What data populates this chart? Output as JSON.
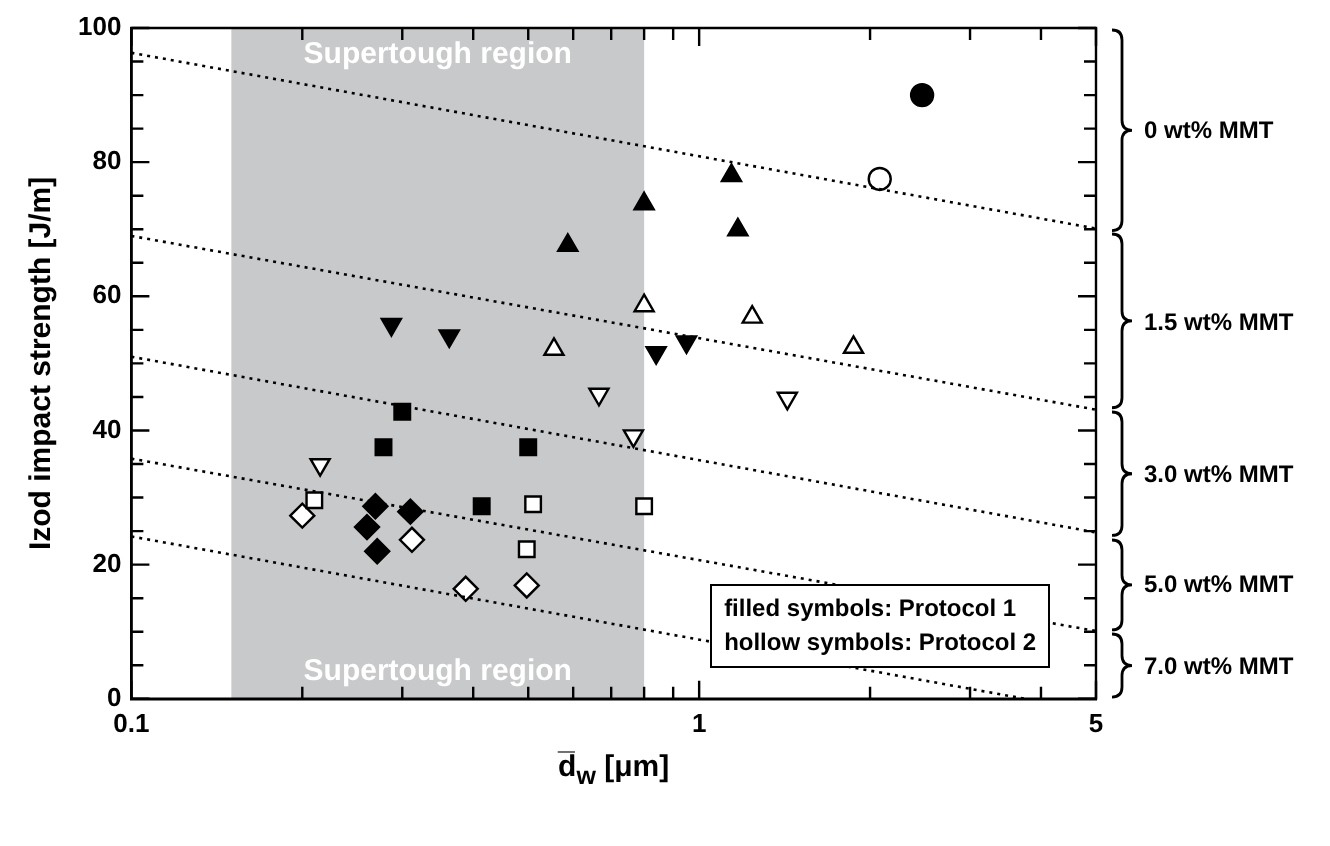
{
  "chart_data": {
    "type": "scatter",
    "xlabel": "d̅$_{w}$ [μm]",
    "ylabel": "Izod impact strength [J/m]",
    "log": "x",
    "grid": false,
    "legend": false,
    "xlim": [
      0.1,
      5
    ],
    "ylim": [
      0,
      100
    ],
    "xticks": [
      0.1,
      {
        "value": 0.2,
        "label": null
      },
      {
        "value": 0.3,
        "label": null
      },
      {
        "value": 0.4,
        "label": null
      },
      {
        "value": 0.5,
        "label": null
      },
      {
        "value": 0.6,
        "label": null
      },
      {
        "value": 0.7,
        "label": null
      },
      {
        "value": 0.8,
        "label": null
      },
      {
        "value": 0.9,
        "label": null
      },
      1,
      {
        "value": 2,
        "label": null
      },
      {
        "value": 3,
        "label": null
      },
      {
        "value": 4,
        "label": null
      },
      5
    ],
    "yticks": [
      0,
      {
        "value": 5,
        "label": null
      },
      {
        "value": 10,
        "label": null
      },
      {
        "value": 15,
        "label": null
      },
      20,
      {
        "value": 25,
        "label": null
      },
      {
        "value": 30,
        "label": null
      },
      {
        "value": 35,
        "label": null
      },
      40,
      {
        "value": 45,
        "label": null
      },
      {
        "value": 50,
        "label": null
      },
      {
        "value": 55,
        "label": null
      },
      60,
      {
        "value": 65,
        "label": null
      },
      {
        "value": 70,
        "label": null
      },
      {
        "value": 75,
        "label": null
      },
      80,
      {
        "value": 85,
        "label": null
      },
      {
        "value": 90,
        "label": null
      },
      {
        "value": 95,
        "label": null
      },
      100
    ],
    "bands": [
      {
        "axis": "x",
        "from": 0.15,
        "to": 0.8,
        "label": "Supertough region",
        "color": "#c8c9cb"
      }
    ],
    "annotations": [
      "Supertough region",
      "0 wt% MMT",
      "1.5 wt% MMT",
      "3.0 wt% MMT",
      "5.0 wt% MMT",
      "7.0 wt% MMT",
      "filled symbols: Protocol 1",
      "hollow symbols: Protocol 2"
    ],
    "series": [
      {
        "type": "line",
        "marker": "none",
        "line_style": "dotted",
        "color": "#000000",
        "x": [
          0.1,
          5
        ],
        "values": [
          96.3,
          70.1
        ]
      },
      {
        "type": "line",
        "marker": "none",
        "line_style": "dotted",
        "color": "#000000",
        "x": [
          0.1,
          5
        ],
        "values": [
          69,
          43.1
        ]
      },
      {
        "type": "line",
        "marker": "none",
        "line_style": "dotted",
        "color": "#000000",
        "x": [
          0.1,
          5
        ],
        "values": [
          51,
          24.8
        ]
      },
      {
        "type": "line",
        "marker": "none",
        "line_style": "dotted",
        "color": "#000000",
        "x": [
          0.1,
          5
        ],
        "values": [
          35.8,
          10.1
        ]
      },
      {
        "type": "line",
        "marker": "none",
        "line_style": "dotted",
        "color": "#000000",
        "x": [
          0.1,
          3.75
        ],
        "values": [
          24.2,
          0
        ]
      },
      {
        "marker": "circle",
        "color": "#000000",
        "x": [
          2.47
        ],
        "values": [
          90
        ]
      },
      {
        "marker": "circle",
        "color": "#ffffff",
        "x": [
          2.08
        ],
        "values": [
          77.5
        ]
      },
      {
        "marker": "triangle",
        "color": "#000000",
        "x": [
          0.587,
          0.8,
          1.14,
          1.17
        ],
        "values": [
          67.6,
          73.8,
          78,
          69.9
        ]
      },
      {
        "marker": "triangle",
        "color": "#ffffff",
        "x": [
          0.8,
          0.555,
          1.24,
          1.87
        ],
        "values": [
          58.6,
          52.1,
          56.9,
          52.4
        ]
      },
      {
        "marker": "triangle-down",
        "color": "#000000",
        "x": [
          0.287,
          0.363,
          0.84,
          0.95
        ],
        "values": [
          55.8,
          54.1,
          51.6,
          53.2
        ]
      },
      {
        "marker": "triangle-down",
        "color": "#ffffff",
        "x": [
          0.215,
          0.666,
          0.766,
          1.43
        ],
        "values": [
          34.9,
          45.4,
          39.2,
          44.8
        ]
      },
      {
        "marker": "square",
        "color": "#000000",
        "x": [
          0.3,
          0.278,
          0.5,
          0.414
        ],
        "values": [
          42.8,
          37.5,
          37.5,
          28.7
        ]
      },
      {
        "marker": "square",
        "color": "#ffffff",
        "x": [
          0.21,
          0.51,
          0.497,
          0.8
        ],
        "values": [
          29.6,
          29,
          22.3,
          28.7
        ]
      },
      {
        "marker": "diamond",
        "color": "#000000",
        "x": [
          0.269,
          0.31,
          0.26,
          0.271
        ],
        "values": [
          28.7,
          27.9,
          25.6,
          22
        ]
      },
      {
        "marker": "diamond",
        "color": "#ffffff",
        "x": [
          0.2,
          0.312,
          0.388,
          0.497
        ],
        "values": [
          27.3,
          23.7,
          16.4,
          16.9
        ]
      }
    ]
  }
}
